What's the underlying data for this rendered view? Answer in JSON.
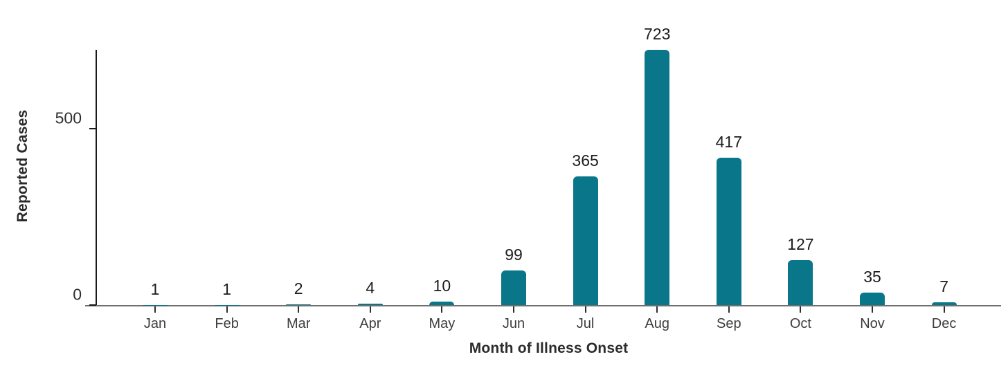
{
  "chart_data": {
    "type": "bar",
    "categories": [
      "Jan",
      "Feb",
      "Mar",
      "Apr",
      "May",
      "Jun",
      "Jul",
      "Aug",
      "Sep",
      "Oct",
      "Nov",
      "Dec"
    ],
    "values": [
      1,
      1,
      2,
      4,
      10,
      99,
      365,
      723,
      417,
      127,
      35,
      7
    ],
    "title": "",
    "xlabel": "Month of Illness Onset",
    "ylabel": "Reported Cases",
    "yticks": [
      {
        "value": 0,
        "label": "0"
      },
      {
        "value": 500,
        "label": "500"
      }
    ],
    "ylim": [
      0,
      723
    ],
    "grid": false,
    "legend": "none",
    "value_labels_shown": true,
    "bar_color": "#0a7689",
    "value_label_color": "#1c1c1c",
    "axis_title_color": "#2b2b2b",
    "tick_label_color": "#3d3d3d",
    "y_axis_line_color": "#1a1a1a",
    "x_axis_line_color": "#6f6f6f",
    "background_color": "#ffffff"
  }
}
